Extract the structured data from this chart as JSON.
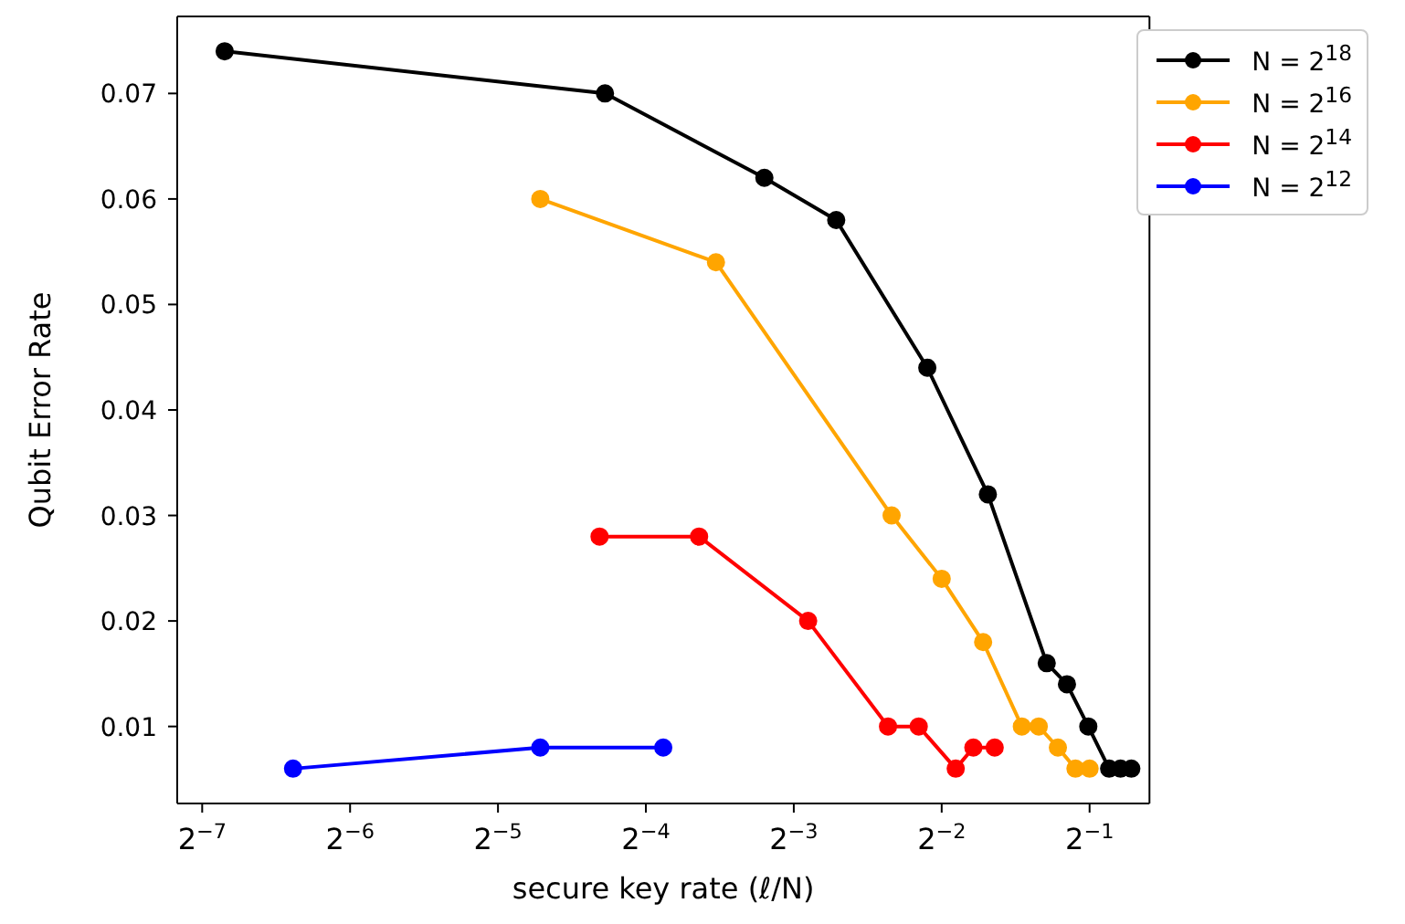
{
  "chart_data": {
    "type": "line",
    "xlabel": "secure key rate (ℓ/N)",
    "ylabel": "Qubit Error Rate",
    "log": "x",
    "marker": "circle",
    "line_style": "solid",
    "grid": false,
    "legend": "top right",
    "xlim": [
      0.00695,
      0.662
    ],
    "ylim": [
      0.0027,
      0.0773
    ],
    "xticks": [
      {
        "value": 0.0078125,
        "label": "2$^{−7}$"
      },
      {
        "value": 0.015625,
        "label": "2$^{−6}$"
      },
      {
        "value": 0.03125,
        "label": "2$^{−5}$"
      },
      {
        "value": 0.0625,
        "label": "2$^{−4}$"
      },
      {
        "value": 0.125,
        "label": "2$^{−3}$"
      },
      {
        "value": 0.25,
        "label": "2$^{−2}$"
      },
      {
        "value": 0.5,
        "label": "2$^{−1}$"
      }
    ],
    "yticks": [
      0.01,
      0.02,
      0.03,
      0.04,
      0.05,
      0.06,
      0.07
    ],
    "series": [
      {
        "name": "N = 2$^{18}$",
        "color": "#000000",
        "x": [
          0.00868,
          0.0516,
          0.1089,
          0.1525,
          0.2337,
          0.3104,
          0.409,
          0.4497,
          0.497,
          0.548,
          0.578,
          0.608
        ],
        "values": [
          0.074,
          0.07,
          0.062,
          0.058,
          0.044,
          0.032,
          0.016,
          0.014,
          0.01,
          0.006,
          0.006,
          0.006
        ]
      },
      {
        "name": "N = 2$^{16}$",
        "color": "#ffa500",
        "x": [
          0.0381,
          0.0868,
          0.1977,
          0.25,
          0.3036,
          0.364,
          0.394,
          0.431,
          0.468,
          0.5
        ],
        "values": [
          0.06,
          0.054,
          0.03,
          0.024,
          0.018,
          0.01,
          0.01,
          0.008,
          0.006,
          0.006
        ]
      },
      {
        "name": "N = 2$^{14}$",
        "color": "#ff0000",
        "x": [
          0.0503,
          0.0802,
          0.1337,
          0.1944,
          0.2245,
          0.267,
          0.29,
          0.3205
        ],
        "values": [
          0.028,
          0.028,
          0.02,
          0.01,
          0.01,
          0.006,
          0.008,
          0.008
        ]
      },
      {
        "name": "N = 2$^{12}$",
        "color": "#0000ff",
        "x": [
          0.01196,
          0.0381,
          0.0678
        ],
        "values": [
          0.006,
          0.008,
          0.008
        ]
      }
    ]
  }
}
